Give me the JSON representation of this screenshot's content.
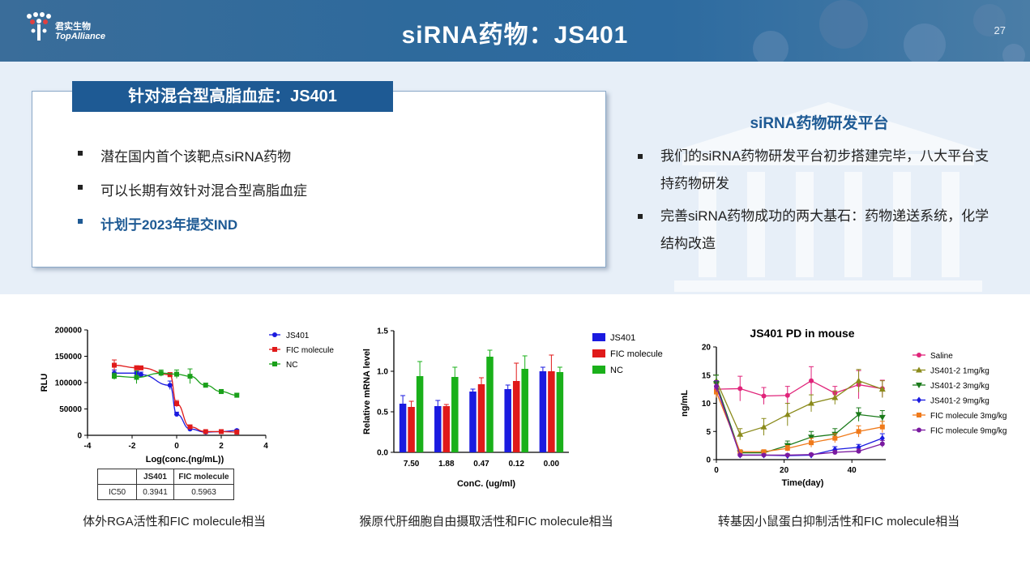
{
  "header": {
    "logo_cn": "君实生物",
    "logo_en": "TopAlliance",
    "title": "siRNA药物：JS401",
    "page_number": "27"
  },
  "card": {
    "title": "针对混合型高脂血症：JS401",
    "bullets": [
      "潜在国内首个该靶点siRNA药物",
      "可以长期有效针对混合型高脂血症",
      "计划于2023年提交IND"
    ]
  },
  "platform": {
    "title": "siRNA药物研发平台",
    "bullets": [
      "我们的siRNA药物研发平台初步搭建完毕，八大平台支持药物研发",
      "完善siRNA药物成功的两大基石：药物递送系统，化学结构改造"
    ]
  },
  "captions": [
    "体外RGA活性和FIC molecule相当",
    "猴原代肝细胞自由摄取活性和FIC molecule相当",
    "转基因小鼠蛋白抑制活性和FIC molecule相当"
  ],
  "ic50_table": {
    "headers": [
      "",
      "JS401",
      "FIC molecule"
    ],
    "row": [
      "IC50",
      "0.3941",
      "0.5963"
    ]
  },
  "chart_data": [
    {
      "type": "line",
      "title": "",
      "xlabel": "Log(conc.(ng/mL))",
      "ylabel": "RLU",
      "xlim": [
        -4,
        4
      ],
      "ylim": [
        0,
        200000
      ],
      "xticks": [
        "-4",
        "-2",
        "0",
        "2",
        "4"
      ],
      "yticks": [
        "0",
        "50000",
        "100000",
        "150000",
        "200000"
      ],
      "legend_position": "top-right",
      "series": [
        {
          "name": "JS401",
          "color": "#1a1adf",
          "marker": "circle",
          "x": [
            -2.8,
            -1.8,
            -1.6,
            -0.3,
            0.0,
            0.6,
            1.3,
            2.0,
            2.7
          ],
          "y": [
            118000,
            118000,
            115000,
            95000,
            40000,
            12000,
            6000,
            7000,
            9000
          ],
          "err": [
            6000,
            4000,
            5000,
            8000,
            4000,
            2000,
            1500,
            1500,
            2000
          ]
        },
        {
          "name": "FIC molecule",
          "color": "#e01a1a",
          "marker": "square",
          "x": [
            -2.8,
            -1.8,
            -1.6,
            -0.3,
            0.0,
            0.6,
            1.3,
            2.0,
            2.7
          ],
          "y": [
            133000,
            128000,
            128000,
            115000,
            60000,
            16000,
            7000,
            7000,
            6000
          ],
          "err": [
            10000,
            4000,
            3000,
            4000,
            6000,
            2000,
            1500,
            1500,
            1500
          ]
        },
        {
          "name": "NC",
          "color": "#1aa01a",
          "marker": "square",
          "x": [
            -2.8,
            -1.8,
            -0.7,
            0.0,
            0.6,
            1.3,
            2.0,
            2.7
          ],
          "y": [
            112000,
            110000,
            118000,
            116000,
            112000,
            95000,
            83000,
            76000
          ],
          "err": [
            6000,
            12000,
            6000,
            8000,
            14000,
            4000,
            4000,
            4000
          ]
        }
      ]
    },
    {
      "type": "bar",
      "title": "",
      "xlabel": "ConC. (ug/ml)",
      "ylabel": "Relative  mRNA level",
      "ylim": [
        0,
        1.5
      ],
      "yticks": [
        "0.0",
        "0.5",
        "1.0",
        "1.5"
      ],
      "categories": [
        "7.50",
        "1.88",
        "0.47",
        "0.12",
        "0.00"
      ],
      "legend_position": "right",
      "series": [
        {
          "name": "JS401",
          "color": "#1a1ae0",
          "values": [
            0.6,
            0.57,
            0.75,
            0.78,
            1.0
          ],
          "err": [
            0.1,
            0.07,
            0.03,
            0.05,
            0.05
          ]
        },
        {
          "name": "FIC molecule",
          "color": "#e01a1a",
          "values": [
            0.56,
            0.57,
            0.84,
            0.88,
            1.0
          ],
          "err": [
            0.07,
            0.02,
            0.08,
            0.22,
            0.2
          ]
        },
        {
          "name": "NC",
          "color": "#1ab01a",
          "values": [
            0.94,
            0.93,
            1.18,
            1.03,
            0.99
          ],
          "err": [
            0.18,
            0.12,
            0.08,
            0.16,
            0.06
          ]
        }
      ]
    },
    {
      "type": "line",
      "title": "JS401 PD in mouse",
      "xlabel": "Time(day)",
      "ylabel": "ng/mL",
      "xlim": [
        0,
        50
      ],
      "ylim": [
        0,
        20
      ],
      "xticks": [
        "0",
        "20",
        "40"
      ],
      "yticks": [
        "0",
        "5",
        "10",
        "15",
        "20"
      ],
      "legend_position": "right",
      "series": [
        {
          "name": "Saline",
          "color": "#e0247a",
          "marker": "circle",
          "x": [
            0,
            7,
            14,
            21,
            28,
            35,
            42,
            49
          ],
          "y": [
            12.5,
            12.6,
            11.3,
            11.4,
            14.0,
            11.8,
            13.3,
            12.6
          ],
          "err": [
            1.0,
            2.2,
            1.5,
            1.6,
            2.5,
            1.2,
            2.5,
            1.5
          ]
        },
        {
          "name": "JS401-2 1mg/kg",
          "color": "#8a8a1a",
          "marker": "triangle-up",
          "x": [
            0,
            7,
            14,
            21,
            28,
            35,
            42,
            49
          ],
          "y": [
            14.0,
            4.5,
            5.8,
            8.0,
            10.0,
            11.0,
            14.0,
            12.5
          ],
          "err": [
            1.0,
            1.0,
            1.5,
            2.0,
            1.5,
            1.2,
            2.0,
            1.5
          ]
        },
        {
          "name": "JS401-2 3mg/kg",
          "color": "#1a7a1a",
          "marker": "triangle-down",
          "x": [
            0,
            7,
            14,
            21,
            28,
            35,
            42,
            49
          ],
          "y": [
            13.5,
            1.2,
            1.2,
            2.5,
            4.0,
            4.5,
            8.0,
            7.5
          ],
          "err": [
            1.5,
            0.3,
            0.3,
            0.8,
            1.0,
            1.0,
            1.2,
            1.2
          ]
        },
        {
          "name": "JS401-2 9mg/kg",
          "color": "#1a1ae0",
          "marker": "diamond",
          "x": [
            0,
            7,
            14,
            21,
            28,
            35,
            42,
            49
          ],
          "y": [
            13.0,
            0.8,
            0.8,
            0.7,
            0.8,
            1.8,
            2.2,
            3.8
          ],
          "err": [
            1.0,
            0.2,
            0.2,
            0.2,
            0.2,
            0.5,
            0.5,
            0.8
          ]
        },
        {
          "name": "FIC molecule 3mg/kg",
          "color": "#f07a1a",
          "marker": "square",
          "x": [
            0,
            7,
            14,
            21,
            28,
            35,
            42,
            49
          ],
          "y": [
            12.0,
            1.4,
            1.4,
            2.0,
            3.0,
            3.8,
            5.0,
            5.8
          ],
          "err": [
            1.0,
            0.3,
            0.3,
            0.5,
            0.8,
            0.8,
            1.0,
            1.0
          ]
        },
        {
          "name": "FIC molecule 9mg/kg",
          "color": "#7a1aa0",
          "marker": "circle",
          "x": [
            0,
            7,
            14,
            21,
            28,
            35,
            42,
            49
          ],
          "y": [
            13.0,
            0.8,
            0.8,
            0.8,
            0.9,
            1.3,
            1.5,
            2.8
          ],
          "err": [
            1.0,
            0.2,
            0.2,
            0.2,
            0.2,
            0.3,
            0.4,
            0.6
          ]
        }
      ]
    }
  ]
}
